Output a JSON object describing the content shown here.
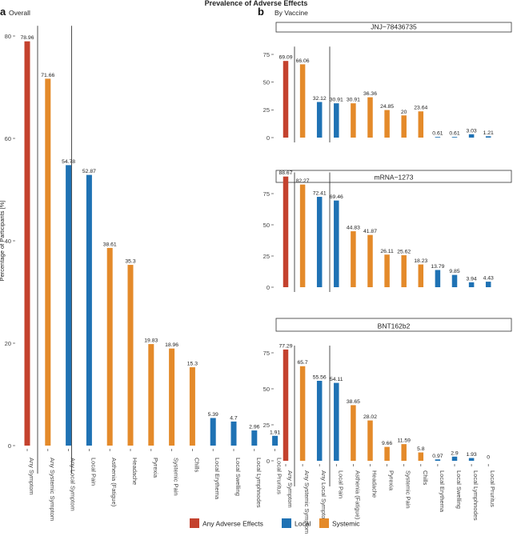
{
  "figure_title": "Prevalence of Adverse Effects",
  "panel_a": {
    "letter": "a",
    "subtitle": "Overall"
  },
  "panel_b": {
    "letter": "b",
    "subtitle": "By Vaccine"
  },
  "colors": {
    "any": "#c4422e",
    "local": "#1f72b4",
    "systemic": "#e48a2a",
    "axis": "#555555",
    "text": "#222222"
  },
  "legend": [
    {
      "key": "any",
      "label": "Any Adverse Effects"
    },
    {
      "key": "local",
      "label": "Local"
    },
    {
      "key": "systemic",
      "label": "Systemic"
    }
  ],
  "chart_data": [
    {
      "type": "bar",
      "panel": "a",
      "title": "Overall",
      "ylabel": "Percentage of Participants [%]",
      "ylim": [
        0,
        82
      ],
      "yticks": [
        0,
        20,
        40,
        60,
        80
      ],
      "categories": [
        "Any Symptom",
        "Any Systemic Symptom",
        "Any Local Symptom",
        "Local Pain",
        "Asthenia (Fatigue)",
        "Headache",
        "Pyrexia",
        "Systemic Pain",
        "Chills",
        "Local Erythema",
        "Local Swelling",
        "Local Lymphnodes",
        "Local Pruritus"
      ],
      "groups": [
        "any",
        "systemic",
        "local",
        "local",
        "systemic",
        "systemic",
        "systemic",
        "systemic",
        "systemic",
        "local",
        "local",
        "local",
        "local"
      ],
      "values": [
        78.96,
        71.66,
        54.78,
        52.87,
        38.61,
        35.3,
        19.83,
        18.96,
        15.3,
        5.39,
        4.7,
        2.96,
        1.91
      ],
      "labels": [
        "78.96",
        "71.66",
        "54.78",
        "52.87",
        "38.61",
        "35.3",
        "19.83",
        "18.96",
        "15.3",
        "5.39",
        "4.7",
        "2.96",
        "1.91"
      ]
    },
    {
      "type": "bar",
      "panel": "b",
      "title": "JNJ−78436735",
      "ylim": [
        0,
        82
      ],
      "yticks": [
        0,
        25,
        50,
        75
      ],
      "categories": [
        "Any Symptom",
        "Any Systemic Symptom",
        "Any Local Symptom",
        "Local Pain",
        "Asthenia (Fatigue)",
        "Headache",
        "Pyrexia",
        "Systemic Pain",
        "Chills",
        "Local Erythema",
        "Local Swelling",
        "Local Lymphnodes",
        "Local Pruritus"
      ],
      "groups": [
        "any",
        "systemic",
        "local",
        "local",
        "systemic",
        "systemic",
        "systemic",
        "systemic",
        "systemic",
        "local",
        "local",
        "local",
        "local"
      ],
      "values": [
        69.09,
        66.06,
        32.12,
        30.91,
        30.91,
        36.36,
        24.85,
        20,
        23.64,
        0.61,
        0.61,
        3.03,
        1.21
      ],
      "labels": [
        "69.09",
        "66.06",
        "32.12",
        "30.91",
        "30.91",
        "36.36",
        "24.85",
        "20",
        "23.64",
        "0.61",
        "0.61",
        "3.03",
        "1.21"
      ]
    },
    {
      "type": "bar",
      "panel": "b",
      "title": "mRNA−1273",
      "ylim": [
        0,
        92
      ],
      "yticks": [
        0,
        25,
        50,
        75
      ],
      "categories": [
        "Any Symptom",
        "Any Systemic Symptom",
        "Any Local Symptom",
        "Local Pain",
        "Asthenia (Fatigue)",
        "Headache",
        "Pyrexia",
        "Systemic Pain",
        "Chills",
        "Local Erythema",
        "Local Swelling",
        "Local Lymphnodes",
        "Local Pruritus"
      ],
      "groups": [
        "any",
        "systemic",
        "local",
        "local",
        "systemic",
        "systemic",
        "systemic",
        "systemic",
        "systemic",
        "local",
        "local",
        "local",
        "local"
      ],
      "values": [
        88.67,
        82.27,
        72.41,
        69.46,
        44.83,
        41.87,
        26.11,
        25.62,
        18.23,
        13.79,
        9.85,
        3.94,
        4.43
      ],
      "labels": [
        "88.67",
        "82.27",
        "72.41",
        "69.46",
        "44.83",
        "41.87",
        "26.11",
        "25.62",
        "18.23",
        "13.79",
        "9.85",
        "3.94",
        "4.43"
      ]
    },
    {
      "type": "bar",
      "panel": "b",
      "title": "BNT162b2",
      "ylim": [
        0,
        80
      ],
      "yticks": [
        0,
        25,
        50,
        75
      ],
      "categories": [
        "Any Symptom",
        "Any Systemic Symptom",
        "Any Local Symptom",
        "Local Pain",
        "Asthenia (Fatigue)",
        "Headache",
        "Pyrexia",
        "Systemic Pain",
        "Chills",
        "Local Erythema",
        "Local Swelling",
        "Local Lymphnodes",
        "Local Pruritus"
      ],
      "groups": [
        "any",
        "systemic",
        "local",
        "local",
        "systemic",
        "systemic",
        "systemic",
        "systemic",
        "systemic",
        "local",
        "local",
        "local",
        "local"
      ],
      "values": [
        77.29,
        65.7,
        55.56,
        54.11,
        38.65,
        28.02,
        9.66,
        11.59,
        5.8,
        0.97,
        2.9,
        1.93,
        0
      ],
      "labels": [
        "77.29",
        "65.7",
        "55.56",
        "54.11",
        "38.65",
        "28.02",
        "9.66",
        "11.59",
        "5.8",
        "0.97",
        "2.9",
        "1.93",
        "0"
      ]
    }
  ]
}
